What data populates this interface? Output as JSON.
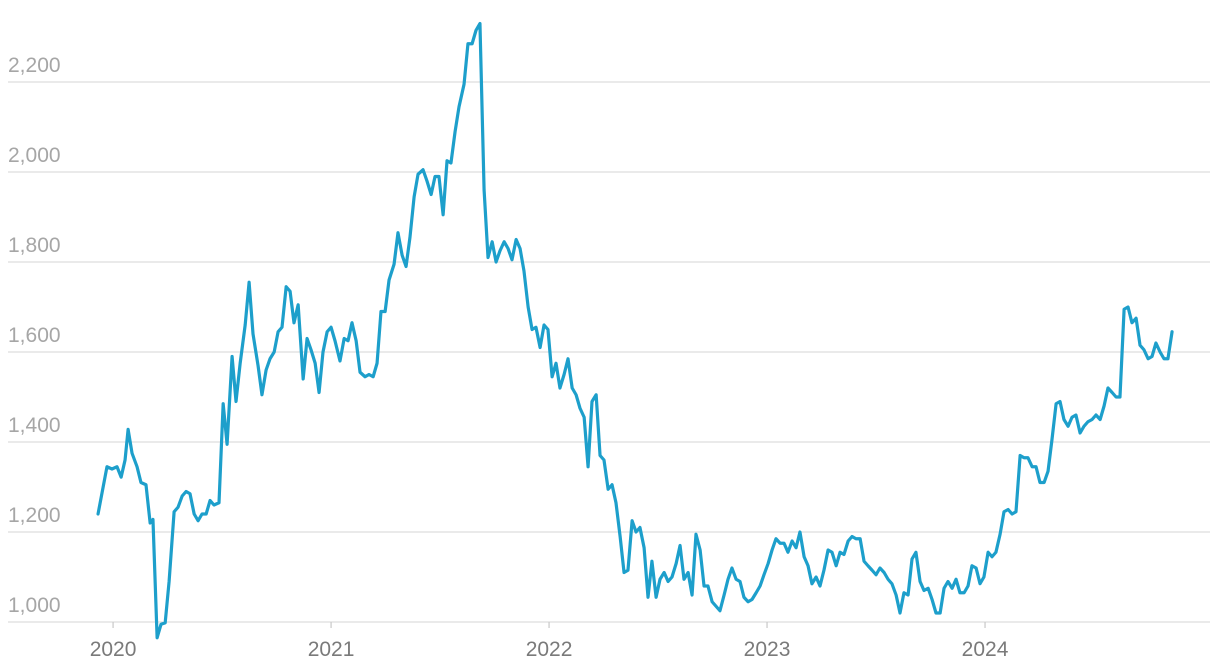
{
  "chart_data": {
    "type": "line",
    "color": "#1d9fcb",
    "grid": true,
    "xlim": [
      2019.518,
      2025.032
    ],
    "xticks": [
      2020,
      2021,
      2022,
      2023,
      2024
    ],
    "ylim": [
      940,
      2340
    ],
    "yticks": [
      {
        "value": 1000,
        "label": "1,000"
      },
      {
        "value": 1200,
        "label": "1,200"
      },
      {
        "value": 1400,
        "label": "1,400"
      },
      {
        "value": 1600,
        "label": "1,600"
      },
      {
        "value": 1800,
        "label": "1,800"
      },
      {
        "value": 2000,
        "label": "2,000"
      },
      {
        "value": 2200,
        "label": "2,200"
      }
    ],
    "x": [
      2019.931,
      2019.972,
      2019.995,
      2020.018,
      2020.037,
      2020.055,
      2020.069,
      2020.087,
      2020.11,
      2020.128,
      2020.151,
      2020.17,
      2020.183,
      2020.202,
      2020.22,
      2020.239,
      2020.257,
      2020.28,
      2020.298,
      2020.317,
      2020.335,
      2020.353,
      2020.372,
      2020.39,
      2020.408,
      2020.427,
      2020.445,
      2020.463,
      2020.486,
      2020.505,
      2020.523,
      2020.546,
      2020.564,
      2020.583,
      2020.606,
      2020.624,
      2020.642,
      2020.665,
      2020.683,
      2020.702,
      2020.72,
      2020.739,
      2020.757,
      2020.775,
      2020.794,
      2020.812,
      2020.83,
      2020.849,
      2020.872,
      2020.89,
      2020.908,
      2020.927,
      2020.945,
      2020.963,
      2020.982,
      2021.0,
      2021.018,
      2021.041,
      2021.06,
      2021.078,
      2021.096,
      2021.115,
      2021.133,
      2021.156,
      2021.174,
      2021.193,
      2021.211,
      2021.229,
      2021.248,
      2021.266,
      2021.289,
      2021.307,
      2021.326,
      2021.344,
      2021.362,
      2021.381,
      2021.399,
      2021.422,
      2021.44,
      2021.459,
      2021.477,
      2021.495,
      2021.514,
      2021.532,
      2021.55,
      2021.569,
      2021.587,
      2021.61,
      2021.628,
      2021.647,
      2021.665,
      2021.683,
      2021.702,
      2021.72,
      2021.739,
      2021.757,
      2021.775,
      2021.794,
      2021.812,
      2021.83,
      2021.849,
      2021.867,
      2021.885,
      2021.904,
      2021.922,
      2021.94,
      2021.959,
      2021.977,
      2021.995,
      2022.014,
      2022.032,
      2022.05,
      2022.069,
      2022.087,
      2022.106,
      2022.124,
      2022.142,
      2022.161,
      2022.179,
      2022.197,
      2022.216,
      2022.234,
      2022.252,
      2022.271,
      2022.289,
      2022.307,
      2022.326,
      2022.344,
      2022.362,
      2022.381,
      2022.399,
      2022.417,
      2022.436,
      2022.454,
      2022.472,
      2022.491,
      2022.509,
      2022.528,
      2022.546,
      2022.564,
      2022.583,
      2022.601,
      2022.619,
      2022.638,
      2022.656,
      2022.674,
      2022.693,
      2022.711,
      2022.729,
      2022.748,
      2022.766,
      2022.784,
      2022.803,
      2022.821,
      2022.839,
      2022.858,
      2022.876,
      2022.894,
      2022.913,
      2022.931,
      2022.95,
      2022.968,
      2022.986,
      2023.005,
      2023.023,
      2023.041,
      2023.06,
      2023.078,
      2023.096,
      2023.115,
      2023.133,
      2023.151,
      2023.17,
      2023.188,
      2023.206,
      2023.225,
      2023.243,
      2023.261,
      2023.28,
      2023.298,
      2023.317,
      2023.335,
      2023.353,
      2023.372,
      2023.39,
      2023.408,
      2023.427,
      2023.445,
      2023.463,
      2023.482,
      2023.5,
      2023.518,
      2023.537,
      2023.555,
      2023.573,
      2023.592,
      2023.61,
      2023.628,
      2023.647,
      2023.665,
      2023.683,
      2023.702,
      2023.72,
      2023.739,
      2023.757,
      2023.775,
      2023.794,
      2023.812,
      2023.83,
      2023.849,
      2023.867,
      2023.885,
      2023.904,
      2023.922,
      2023.94,
      2023.959,
      2023.977,
      2023.995,
      2024.014,
      2024.032,
      2024.05,
      2024.069,
      2024.087,
      2024.106,
      2024.124,
      2024.142,
      2024.161,
      2024.179,
      2024.197,
      2024.216,
      2024.234,
      2024.252,
      2024.271,
      2024.289,
      2024.307,
      2024.326,
      2024.344,
      2024.362,
      2024.381,
      2024.399,
      2024.417,
      2024.436,
      2024.454,
      2024.472,
      2024.491,
      2024.509,
      2024.528,
      2024.546,
      2024.564,
      2024.583,
      2024.601,
      2024.619,
      2024.638,
      2024.656,
      2024.674,
      2024.693,
      2024.711,
      2024.729,
      2024.748,
      2024.766,
      2024.784,
      2024.803,
      2024.821,
      2024.839,
      2024.858
    ],
    "values": [
      1240,
      1345,
      1340,
      1345,
      1322,
      1360,
      1428,
      1375,
      1345,
      1310,
      1305,
      1220,
      1228,
      965,
      995,
      998,
      1090,
      1245,
      1255,
      1280,
      1290,
      1285,
      1240,
      1225,
      1240,
      1240,
      1270,
      1260,
      1265,
      1485,
      1395,
      1590,
      1490,
      1575,
      1660,
      1755,
      1640,
      1570,
      1505,
      1560,
      1585,
      1600,
      1645,
      1655,
      1745,
      1735,
      1665,
      1705,
      1540,
      1630,
      1605,
      1575,
      1510,
      1600,
      1645,
      1655,
      1625,
      1580,
      1630,
      1625,
      1665,
      1625,
      1555,
      1545,
      1550,
      1545,
      1575,
      1690,
      1690,
      1760,
      1795,
      1865,
      1815,
      1790,
      1855,
      1945,
      1995,
      2005,
      1980,
      1950,
      1990,
      1990,
      1905,
      2025,
      2020,
      2090,
      2145,
      2195,
      2285,
      2285,
      2315,
      2330,
      1960,
      1810,
      1845,
      1800,
      1825,
      1845,
      1830,
      1805,
      1850,
      1830,
      1780,
      1700,
      1650,
      1655,
      1610,
      1660,
      1650,
      1545,
      1575,
      1520,
      1550,
      1585,
      1520,
      1505,
      1475,
      1455,
      1345,
      1490,
      1505,
      1370,
      1360,
      1295,
      1305,
      1265,
      1190,
      1110,
      1115,
      1225,
      1200,
      1210,
      1165,
      1055,
      1135,
      1055,
      1095,
      1110,
      1090,
      1100,
      1130,
      1170,
      1095,
      1110,
      1060,
      1195,
      1160,
      1080,
      1080,
      1045,
      1035,
      1025,
      1060,
      1095,
      1120,
      1095,
      1090,
      1055,
      1045,
      1050,
      1065,
      1080,
      1105,
      1130,
      1160,
      1185,
      1175,
      1175,
      1155,
      1180,
      1165,
      1200,
      1145,
      1125,
      1085,
      1100,
      1080,
      1115,
      1160,
      1155,
      1125,
      1155,
      1150,
      1180,
      1190,
      1185,
      1185,
      1135,
      1125,
      1115,
      1105,
      1120,
      1110,
      1095,
      1085,
      1060,
      1020,
      1065,
      1060,
      1140,
      1155,
      1090,
      1070,
      1075,
      1050,
      1020,
      1020,
      1075,
      1090,
      1075,
      1095,
      1065,
      1065,
      1080,
      1125,
      1120,
      1085,
      1100,
      1155,
      1145,
      1155,
      1195,
      1245,
      1250,
      1240,
      1245,
      1370,
      1365,
      1365,
      1345,
      1345,
      1310,
      1310,
      1335,
      1405,
      1485,
      1490,
      1450,
      1435,
      1455,
      1460,
      1420,
      1435,
      1445,
      1450,
      1460,
      1450,
      1480,
      1520,
      1510,
      1500,
      1500,
      1695,
      1700,
      1665,
      1675,
      1615,
      1605,
      1585,
      1590,
      1620,
      1600,
      1585,
      1585,
      1645
    ]
  }
}
